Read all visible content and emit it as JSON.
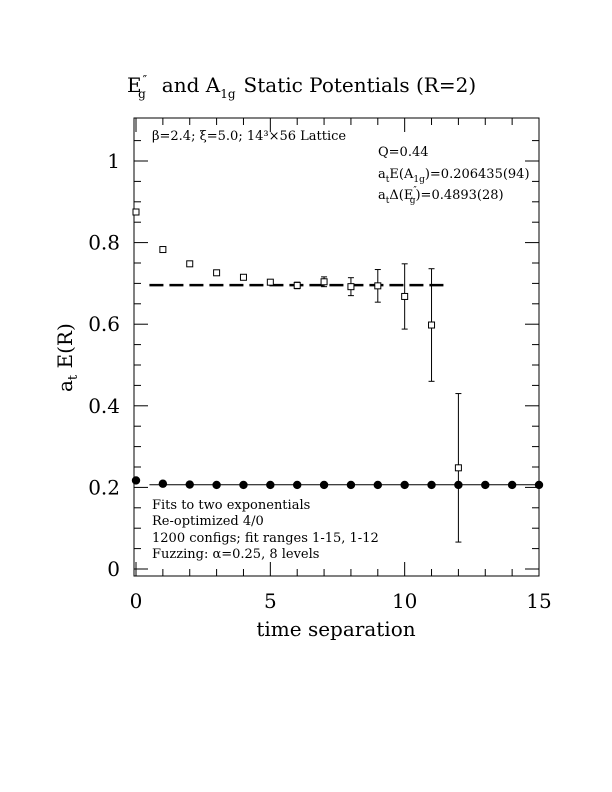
{
  "chart_data": {
    "type": "scatter",
    "title": {
      "part1_main": "E",
      "part1_sup": "″",
      "part1_sub": "g",
      "part2_main": "and A",
      "part2_sub": "1g",
      "part3": "Static Potentials (R=2)"
    },
    "xlabel": "time separation",
    "ylabel": {
      "main": "a",
      "sub": "t",
      "rest": " E(R)"
    },
    "xlim": [
      0,
      15
    ],
    "ylim": [
      -0.02,
      1.1
    ],
    "x_ticks": [
      0,
      5,
      10,
      15
    ],
    "x_tick_labels": [
      "0",
      "5",
      "10",
      "15"
    ],
    "y_ticks": [
      0,
      0.2,
      0.4,
      0.6,
      0.8,
      1.0
    ],
    "y_tick_labels": [
      "0",
      "0.2",
      "0.4",
      "0.6",
      "0.8",
      "1"
    ],
    "grid": false,
    "annotations": {
      "lattice": "β=2.4; ξ=5.0; 14³×56 Lattice",
      "q": "Q=0.44",
      "e_a1g": {
        "pre": "a",
        "pre_sub": "t",
        "mid": "E(A",
        "mid_sub": "1g",
        "post": ")=0.206435(94)"
      },
      "de_eg": {
        "pre": "a",
        "pre_sub": "t",
        "mid": "Δ(E",
        "mid_sup": "″",
        "mid_sub": "g",
        "post": ")=0.4893(28)"
      },
      "fits": "Fits to two exponentials",
      "reopt": "Re-optimized 4/0",
      "configs": "1200 configs; fit ranges 1-15, 1-12",
      "fuzzing": "Fuzzing: α=0.25, 8 levels"
    },
    "series": [
      {
        "marker": "open-square",
        "x": [
          0,
          1,
          2,
          3,
          4,
          5,
          6,
          7,
          8,
          9,
          10,
          11,
          12
        ],
        "y": [
          0.875,
          0.783,
          0.748,
          0.726,
          0.715,
          0.703,
          0.695,
          0.704,
          0.692,
          0.694,
          0.668,
          0.598,
          0.248
        ],
        "yerr": [
          0.003,
          0.003,
          0.003,
          0.004,
          0.004,
          0.005,
          0.008,
          0.012,
          0.022,
          0.04,
          0.08,
          0.138,
          0.182
        ]
      },
      {
        "marker": "filled-circle",
        "x": [
          0,
          1,
          2,
          3,
          4,
          5,
          6,
          7,
          8,
          9,
          10,
          11,
          12,
          13,
          14,
          15
        ],
        "y": [
          0.217,
          0.209,
          0.207,
          0.206,
          0.206,
          0.206,
          0.206,
          0.206,
          0.206,
          0.206,
          0.206,
          0.206,
          0.206,
          0.206,
          0.206,
          0.206
        ]
      }
    ],
    "fit_lines": [
      {
        "style": "dashed",
        "x": [
          0.5,
          11.5
        ],
        "y": 0.6958
      },
      {
        "style": "solid",
        "x": [
          0.5,
          15
        ],
        "y": 0.206435
      }
    ]
  }
}
